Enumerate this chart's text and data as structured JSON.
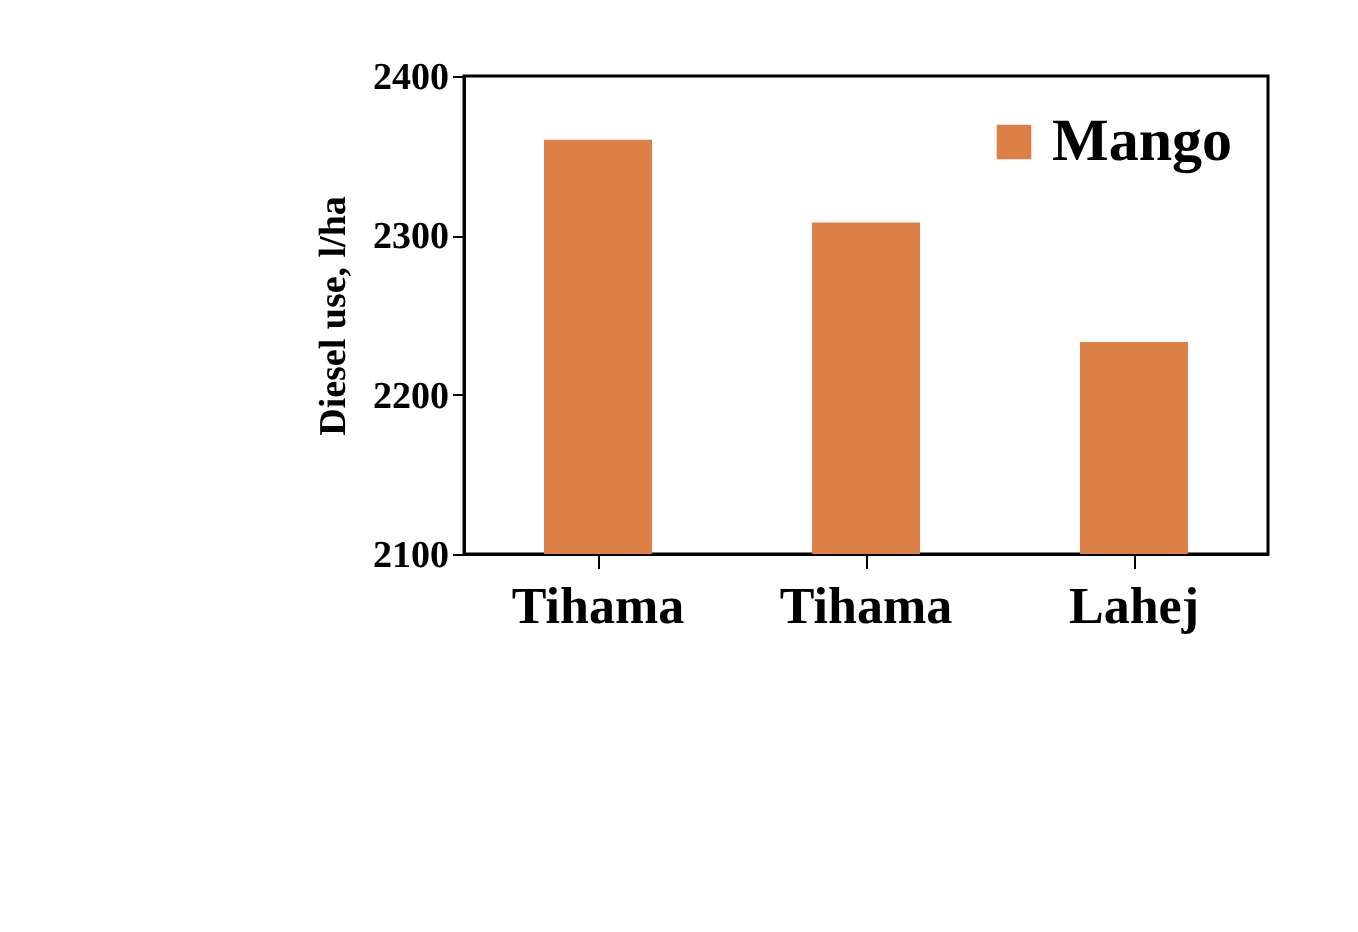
{
  "chart_data": {
    "type": "bar",
    "ylabel": "Diesel use, l/ha",
    "categories": [
      "Tihama",
      "Tihama",
      "Lahej"
    ],
    "series": [
      {
        "name": "Mango",
        "color": "#dd8047",
        "values": [
          2360,
          2308,
          2233
        ]
      }
    ],
    "ylim": [
      2100,
      2400
    ],
    "yticks": [
      2100,
      2200,
      2300,
      2400
    ],
    "grid": false,
    "legend": "top right"
  }
}
